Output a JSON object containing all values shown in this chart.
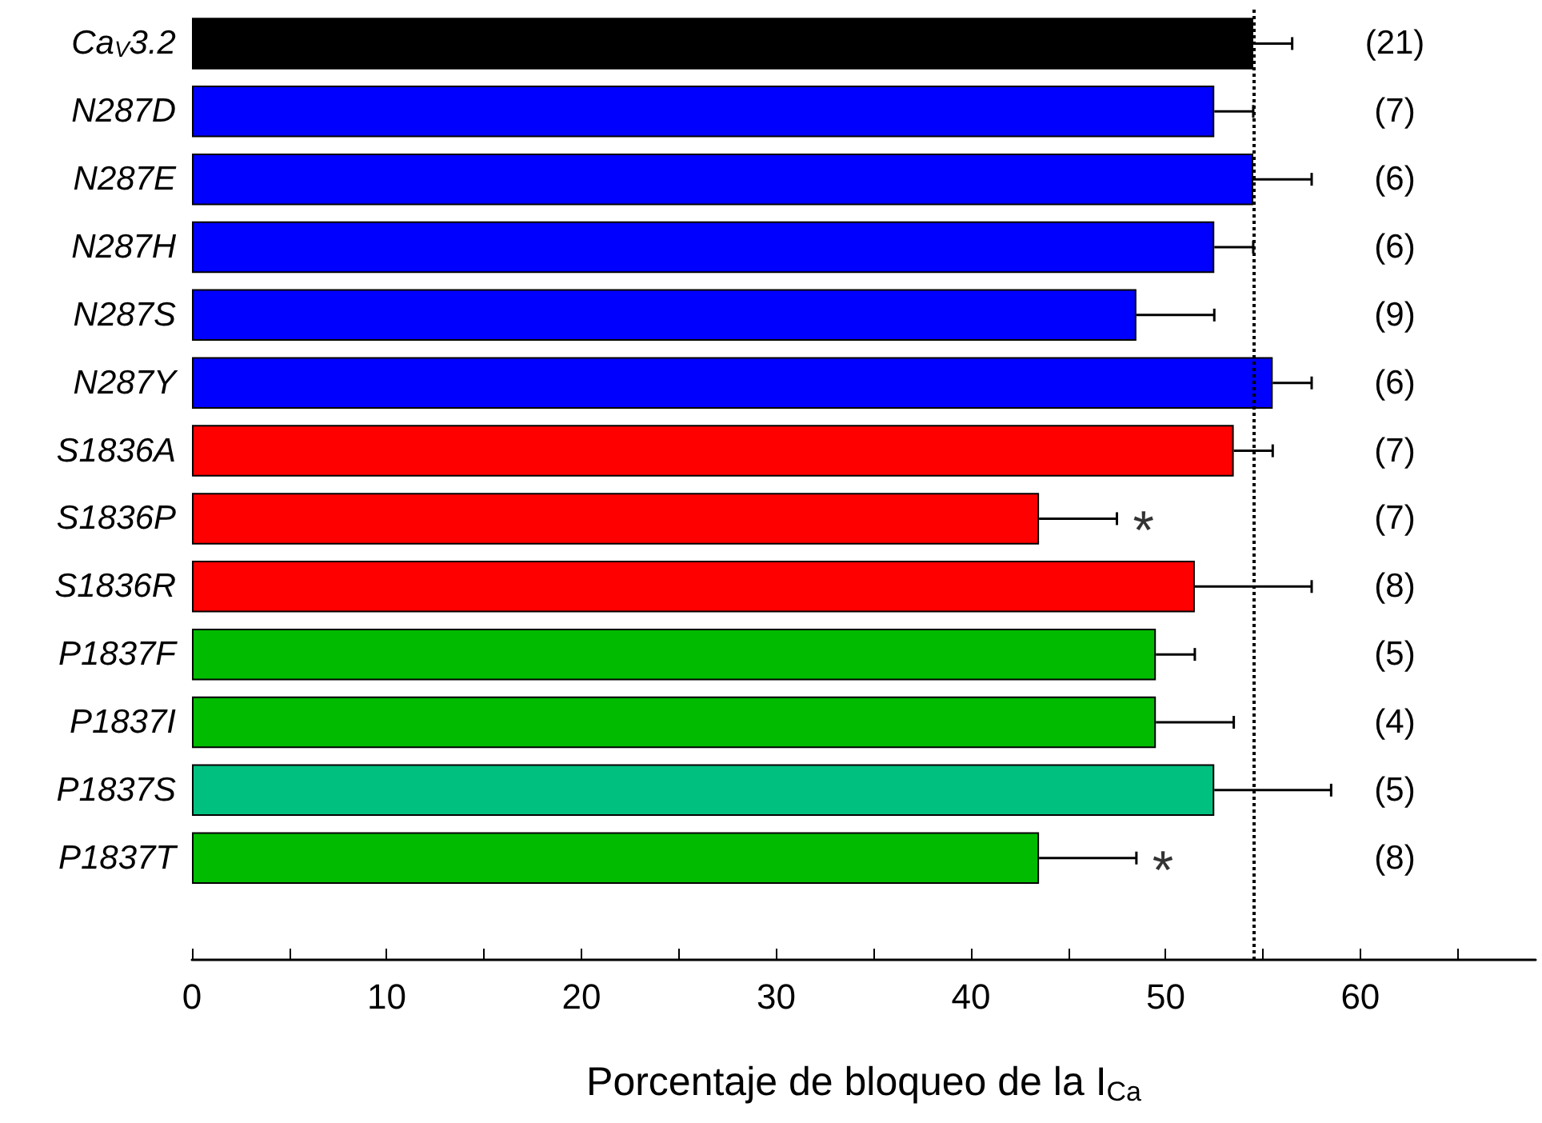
{
  "chart_data": {
    "type": "bar",
    "orientation": "horizontal",
    "xlabel": "Porcentaje de bloqueo de la I$_{Ca}$",
    "categories": [
      "Ca$_{V}$3.2",
      "N287D",
      "N287E",
      "N287H",
      "N287S",
      "N287Y",
      "S1836A",
      "S1836P",
      "S1836R",
      "P1837F",
      "P1837I",
      "P1837S",
      "P1837T"
    ],
    "values": [
      54.5,
      52.5,
      54.5,
      52.5,
      48.5,
      55.5,
      53.5,
      43.5,
      51.5,
      49.5,
      49.5,
      52.5,
      43.5
    ],
    "value_labels": [
      null,
      null,
      null,
      null,
      null,
      null,
      null,
      "*",
      null,
      null,
      null,
      null,
      "*"
    ],
    "errors": [
      2,
      2,
      3,
      2,
      4,
      2,
      2,
      4,
      6,
      2,
      4,
      6,
      5
    ],
    "colors": [
      "#000000",
      "#0000ff",
      "#0000ff",
      "#0000ff",
      "#0000ff",
      "#0000ff",
      "#ff0000",
      "#ff0000",
      "#ff0000",
      "#00bb00",
      "#00bb00",
      "#00c080",
      "#00bb00"
    ],
    "xlim": [
      0,
      69
    ],
    "xticks": [
      0,
      {
        "value": 5,
        "label": null
      },
      10,
      {
        "value": 15,
        "label": null
      },
      20,
      {
        "value": 25,
        "label": null
      },
      30,
      {
        "value": 35,
        "label": null
      },
      40,
      {
        "value": 45,
        "label": null
      },
      50,
      {
        "value": 55,
        "label": null
      },
      60,
      {
        "value": 65,
        "label": null
      }
    ],
    "ref_lines": [
      {
        "axis": "x",
        "value": 54.5,
        "line_style": "dotted",
        "color": "#000000"
      }
    ],
    "annotations": [
      "(21)",
      "(7)",
      "(6)",
      "(6)",
      "(9)",
      "(6)",
      "(7)",
      "(7)",
      "(8)",
      "(5)",
      "(4)",
      "(5)",
      "(8)"
    ],
    "grid": false
  }
}
